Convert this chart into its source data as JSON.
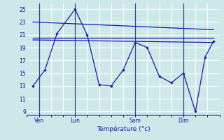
{
  "background_color": "#cce8e8",
  "grid_color": "#ffffff",
  "line_color": "#1a1aaa",
  "x_ticks_labels": [
    "Ven",
    "Lun",
    "Sam",
    "Dim"
  ],
  "x_ticks_positions": [
    1,
    4,
    9,
    13
  ],
  "xlabel": "Température (°c)",
  "ylim": [
    8.5,
    26
  ],
  "yticks": [
    9,
    11,
    13,
    15,
    17,
    19,
    21,
    23,
    25
  ],
  "xlim": [
    0,
    16
  ],
  "zigzag": {
    "x": [
      0.5,
      1.5,
      2.5,
      4,
      5,
      6,
      7,
      8,
      9,
      10,
      11,
      12,
      13,
      14,
      14.8,
      15.5
    ],
    "y": [
      13.0,
      15.5,
      21.2,
      25.0,
      21.0,
      13.2,
      13.0,
      15.5,
      19.8,
      19.0,
      14.5,
      13.5,
      15.0,
      9.0,
      17.5,
      20.0
    ]
  },
  "trend1": {
    "x": [
      0.5,
      15.5
    ],
    "y": [
      20.5,
      20.5
    ]
  },
  "trend2": {
    "x": [
      0.5,
      15.5
    ],
    "y": [
      23.0,
      21.8
    ]
  },
  "trend3": {
    "x": [
      0.5,
      15.5
    ],
    "y": [
      20.2,
      19.8
    ]
  },
  "vlines_x": [
    1,
    4,
    9,
    13
  ]
}
